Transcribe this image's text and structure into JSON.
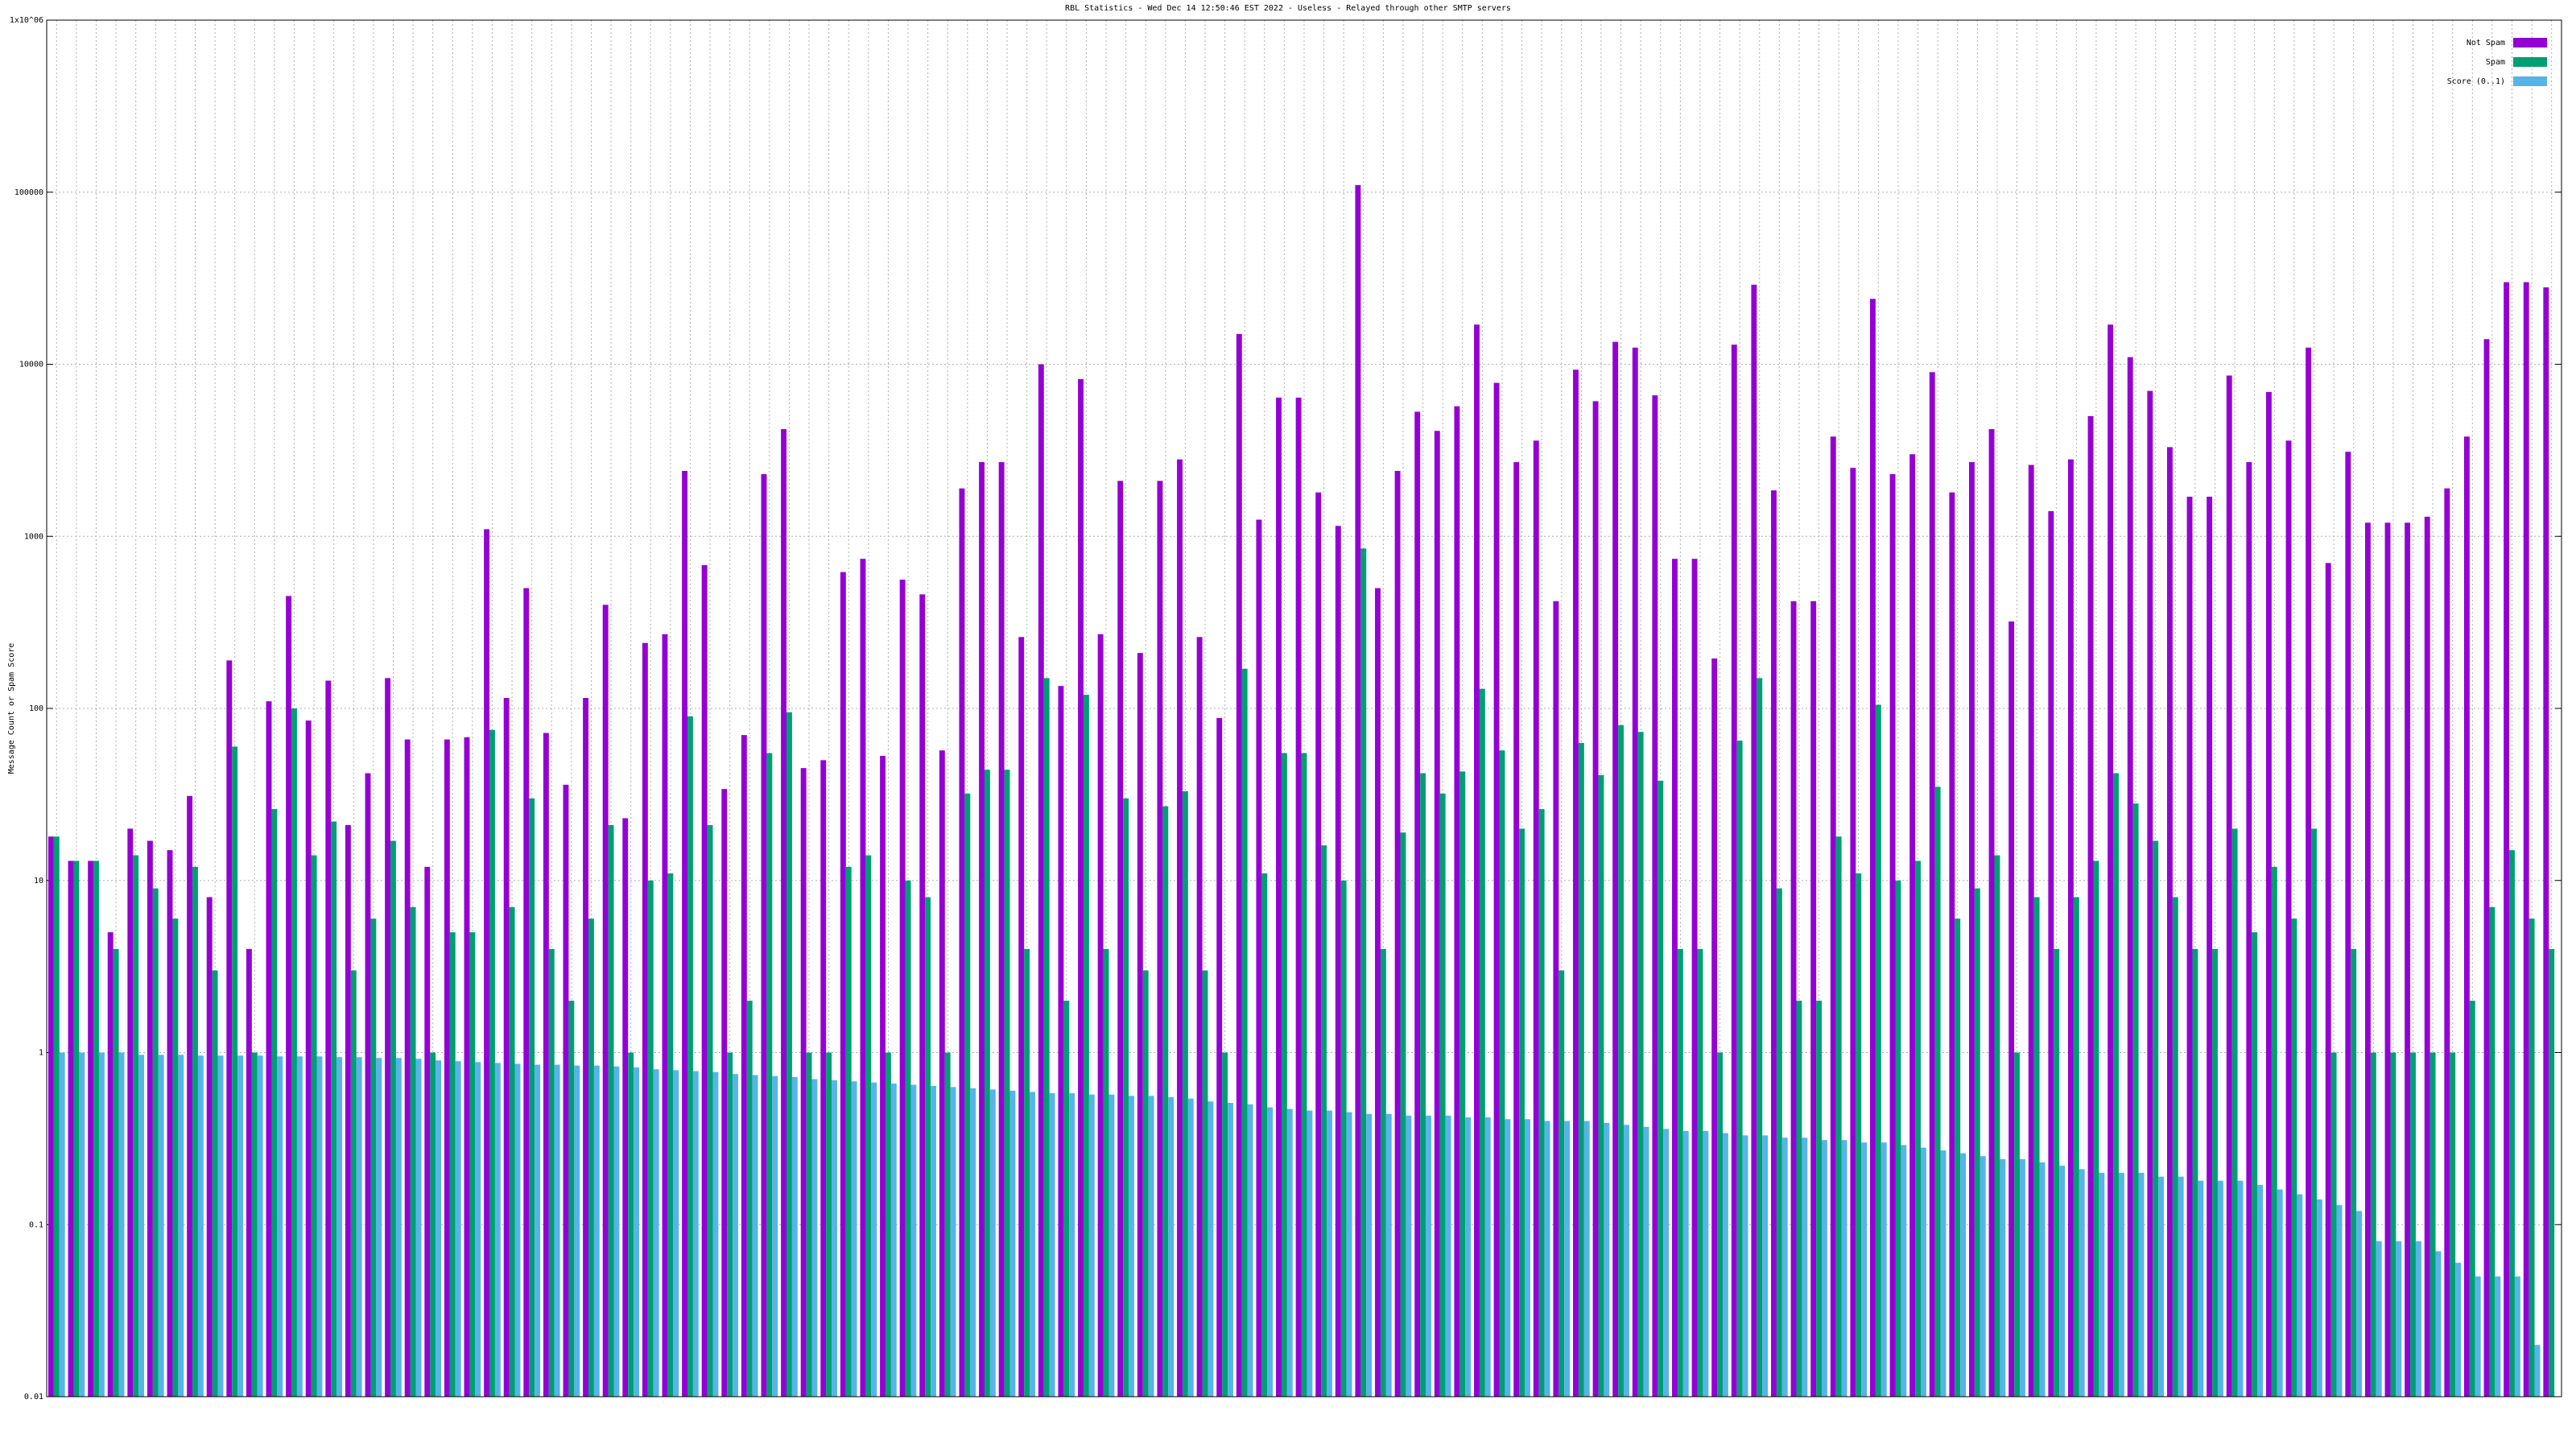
{
  "chart_data": {
    "type": "bar",
    "title": "RBL Statistics - Wed Dec 14 12:50:46 EST 2022 - Useless - Relayed through other SMTP servers",
    "y_label": "Message Count or Spam Score",
    "log_scale": true,
    "grid": true,
    "legend": "top right",
    "ylim": [
      0.01,
      1000000
    ],
    "yticks": [
      0.01,
      0.1,
      1,
      10,
      100,
      1000,
      10000,
      100000,
      {
        "value": 1000000,
        "label": "1x10^06"
      }
    ],
    "categories": [
      null,
      null,
      null,
      null,
      null,
      null,
      null,
      null,
      null,
      null,
      null,
      null,
      null,
      null,
      null,
      null,
      null,
      null,
      null,
      null,
      null,
      null,
      null,
      null,
      null,
      null,
      null,
      null,
      null,
      null,
      null,
      null,
      null,
      null,
      null,
      null,
      null,
      null,
      null,
      null,
      null,
      null,
      null,
      null,
      null,
      null,
      null,
      null,
      null,
      null,
      null,
      null,
      null,
      null,
      null,
      null,
      null,
      null,
      null,
      null,
      null,
      null,
      null,
      null,
      null,
      null,
      null,
      null,
      null,
      null,
      null,
      null,
      null,
      null,
      null,
      null,
      null,
      null,
      null,
      null,
      null,
      null,
      null,
      null,
      null,
      null,
      null,
      null,
      null,
      null,
      null,
      null,
      null,
      null,
      null,
      null,
      null,
      null,
      null,
      null,
      null,
      null,
      null,
      null,
      null,
      null,
      null,
      null,
      null,
      null,
      null,
      null,
      null,
      null,
      null,
      null,
      null,
      null,
      null,
      null,
      null,
      null,
      null,
      null,
      null,
      null,
      null
    ],
    "series": [
      {
        "name": "Not Spam",
        "color": "#9400d3",
        "values": [
          18,
          13,
          13,
          5,
          20,
          17,
          15,
          31,
          8,
          190,
          4,
          110,
          450,
          85,
          145,
          21,
          42,
          150,
          66,
          12,
          66,
          68,
          1100,
          115,
          500,
          72,
          36,
          115,
          400,
          23,
          240,
          270,
          2400,
          680,
          34,
          70,
          2300,
          4200,
          45,
          50,
          620,
          740,
          53,
          560,
          460,
          57,
          1900,
          2700,
          2700,
          260,
          10000,
          135,
          8200,
          270,
          2100,
          210,
          2100,
          2800,
          260,
          88,
          15000,
          1250,
          6400,
          6400,
          1800,
          1150,
          110000,
          500,
          2400,
          5300,
          4100,
          5700,
          17000,
          7800,
          2700,
          3600,
          420,
          9300,
          6100,
          13500,
          12500,
          6600,
          740,
          740,
          195,
          13000,
          29000,
          1850,
          420,
          420,
          3800,
          2500,
          24000,
          2300,
          3000,
          9000,
          1800,
          2700,
          4200,
          320,
          2600,
          1400,
          2800,
          5000,
          17000,
          11000,
          7000,
          3300,
          1700,
          1700,
          8600,
          2700,
          6900,
          3600,
          12500,
          700,
          3100,
          1200,
          1200,
          1200,
          1300,
          1900,
          3800,
          14000,
          30000,
          30000,
          28000
        ]
      },
      {
        "name": "Spam",
        "color": "#009e73",
        "values": [
          18,
          13,
          13,
          4,
          14,
          9,
          6,
          12,
          3,
          60,
          1,
          26,
          100,
          14,
          22,
          3,
          6,
          17,
          7,
          1,
          5,
          5,
          75,
          7,
          30,
          4,
          2,
          6,
          21,
          1,
          10,
          11,
          90,
          21,
          1,
          2,
          55,
          95,
          1,
          1,
          12,
          14,
          1,
          10,
          8,
          1,
          32,
          44,
          44,
          4,
          150,
          2,
          120,
          4,
          30,
          3,
          27,
          33,
          3,
          1,
          170,
          11,
          55,
          55,
          16,
          10,
          850,
          4,
          19,
          42,
          32,
          43,
          130,
          57,
          20,
          26,
          3,
          63,
          41,
          80,
          73,
          38,
          4,
          4,
          1,
          65,
          150,
          9,
          2,
          2,
          18,
          11,
          105,
          10,
          13,
          35,
          6,
          9,
          14,
          1,
          8,
          4,
          8,
          13,
          42,
          28,
          17,
          8,
          4,
          4,
          20,
          5,
          12,
          6,
          20,
          1,
          4,
          1,
          1,
          1,
          1,
          1,
          2,
          7,
          15,
          6,
          4
        ]
      },
      {
        "name": "Score (0..1)",
        "color": "#56b4e9",
        "values": [
          1.0,
          1.0,
          1.0,
          1.0,
          0.97,
          0.97,
          0.97,
          0.96,
          0.96,
          0.96,
          0.96,
          0.95,
          0.95,
          0.95,
          0.94,
          0.94,
          0.93,
          0.93,
          0.92,
          0.9,
          0.89,
          0.88,
          0.87,
          0.86,
          0.85,
          0.85,
          0.84,
          0.84,
          0.83,
          0.82,
          0.8,
          0.79,
          0.78,
          0.77,
          0.75,
          0.74,
          0.73,
          0.72,
          0.7,
          0.69,
          0.68,
          0.67,
          0.66,
          0.65,
          0.64,
          0.63,
          0.62,
          0.61,
          0.6,
          0.59,
          0.58,
          0.58,
          0.57,
          0.57,
          0.56,
          0.56,
          0.55,
          0.54,
          0.52,
          0.51,
          0.5,
          0.48,
          0.47,
          0.46,
          0.46,
          0.45,
          0.44,
          0.44,
          0.43,
          0.43,
          0.43,
          0.42,
          0.42,
          0.41,
          0.41,
          0.4,
          0.4,
          0.4,
          0.39,
          0.38,
          0.37,
          0.36,
          0.35,
          0.35,
          0.34,
          0.33,
          0.33,
          0.32,
          0.32,
          0.31,
          0.31,
          0.3,
          0.3,
          0.29,
          0.28,
          0.27,
          0.26,
          0.25,
          0.24,
          0.24,
          0.23,
          0.22,
          0.21,
          0.2,
          0.2,
          0.2,
          0.19,
          0.19,
          0.18,
          0.18,
          0.18,
          0.17,
          0.16,
          0.15,
          0.14,
          0.13,
          0.12,
          0.08,
          0.08,
          0.08,
          0.07,
          0.06,
          0.05,
          0.05,
          0.05,
          0.02,
          0.01
        ]
      }
    ]
  }
}
